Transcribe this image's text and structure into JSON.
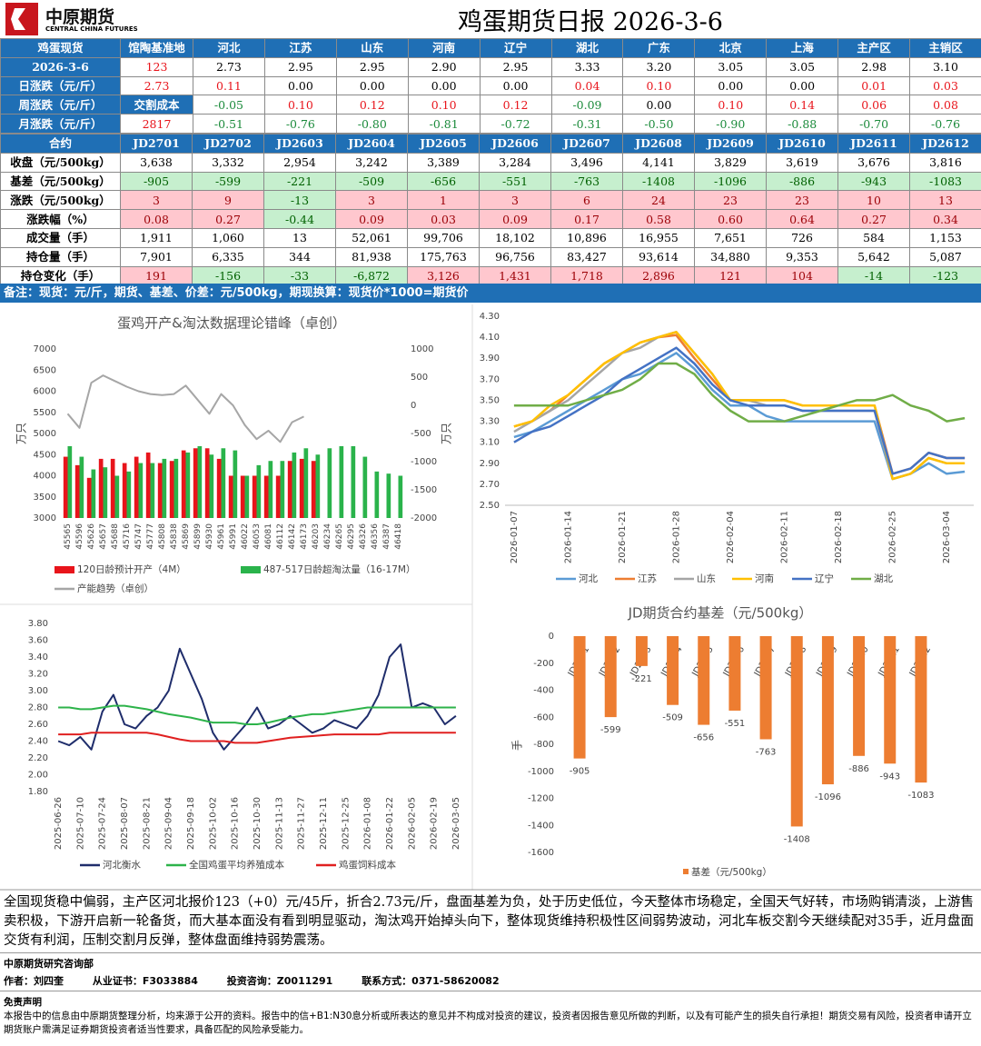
{
  "header": {
    "logo": "中原期货",
    "logo_en": "CENTRAL CHINA FUTURES",
    "title": "鸡蛋期货日报 2026-3-6"
  },
  "spot_table": {
    "header": [
      "鸡蛋现货",
      "馆陶基准地",
      "河北",
      "江苏",
      "山东",
      "河南",
      "辽宁",
      "湖北",
      "广东",
      "北京",
      "上海",
      "主产区",
      "主销区"
    ],
    "rows": [
      [
        "2026-3-6",
        "123",
        "2.73",
        "2.95",
        "2.95",
        "2.90",
        "2.95",
        "3.33",
        "3.20",
        "3.05",
        "3.05",
        "2.98",
        "3.10"
      ],
      [
        "日涨跌（元/斤）",
        "2.73",
        "0.11",
        "0.00",
        "0.00",
        "0.00",
        "0.00",
        "0.04",
        "0.10",
        "0.00",
        "0.00",
        "0.01",
        "0.03"
      ],
      [
        "周涨跌（元/斤）",
        "交割成本",
        "-0.05",
        "0.10",
        "0.12",
        "0.10",
        "0.12",
        "-0.09",
        "0.00",
        "0.10",
        "0.14",
        "0.06",
        "0.08"
      ],
      [
        "月涨跌（元/斤）",
        "2817",
        "-0.51",
        "-0.76",
        "-0.80",
        "-0.81",
        "-0.72",
        "-0.31",
        "-0.50",
        "-0.90",
        "-0.88",
        "-0.70",
        "-0.76"
      ]
    ]
  },
  "futures_table": {
    "header": [
      "合约",
      "JD2701",
      "JD2702",
      "JD2603",
      "JD2604",
      "JD2605",
      "JD2606",
      "JD2607",
      "JD2608",
      "JD2609",
      "JD2610",
      "JD2611",
      "JD2612"
    ],
    "rows": [
      [
        "收盘（元/500kg）",
        "3,638",
        "3,332",
        "2,954",
        "3,242",
        "3,389",
        "3,284",
        "3,496",
        "4,141",
        "3,829",
        "3,619",
        "3,676",
        "3,816"
      ],
      [
        "基差（元/500kg）",
        "-905",
        "-599",
        "-221",
        "-509",
        "-656",
        "-551",
        "-763",
        "-1408",
        "-1096",
        "-886",
        "-943",
        "-1083"
      ],
      [
        "涨跌（元/500kg）",
        "3",
        "9",
        "-13",
        "3",
        "1",
        "3",
        "6",
        "24",
        "23",
        "23",
        "10",
        "13"
      ],
      [
        "涨跌幅（%）",
        "0.08",
        "0.27",
        "-0.44",
        "0.09",
        "0.03",
        "0.09",
        "0.17",
        "0.58",
        "0.60",
        "0.64",
        "0.27",
        "0.34"
      ],
      [
        "成交量（手）",
        "1,911",
        "1,060",
        "13",
        "52,061",
        "99,706",
        "18,102",
        "10,896",
        "16,955",
        "7,651",
        "726",
        "584",
        "1,153"
      ],
      [
        "持仓量（手）",
        "7,901",
        "6,335",
        "344",
        "81,938",
        "175,763",
        "96,756",
        "83,427",
        "93,614",
        "34,880",
        "9,353",
        "5,642",
        "5,087"
      ],
      [
        "持仓变化（手）",
        "191",
        "-156",
        "-33",
        "-6,872",
        "3,126",
        "1,431",
        "1,718",
        "2,896",
        "121",
        "104",
        "-14",
        "-123"
      ]
    ]
  },
  "note": "备注：现货：元/斤，期货、基差、价差：元/500kg，期现换算：现货价*1000=期货价",
  "chart_data": [
    {
      "type": "bar",
      "title": "蛋鸡开产&淘汰数据理论错峰（卓创）",
      "ylabel": "万只",
      "y2label": "万只",
      "categories": [
        "45565",
        "45596",
        "45626",
        "45657",
        "45688",
        "45716",
        "45747",
        "45777",
        "45808",
        "45838",
        "45869",
        "45899",
        "45930",
        "45961",
        "45991",
        "46022",
        "46053",
        "46081",
        "46112",
        "46142",
        "46173",
        "46203",
        "46234",
        "46265",
        "46295",
        "46326",
        "46356",
        "46387",
        "46418"
      ],
      "series": [
        {
          "name": "120日龄预计开产（4M）",
          "type": "bar",
          "color": "#e8141b",
          "values": [
            4450,
            4250,
            3950,
            4400,
            4400,
            4300,
            4450,
            4550,
            4300,
            4350,
            4600,
            4650,
            4650,
            4400,
            4000,
            4000,
            4000,
            4000,
            4000,
            4350,
            4400,
            4350,
            null,
            null,
            null,
            null,
            null,
            null,
            null
          ]
        },
        {
          "name": "487-517日龄超淘汰量（16-17M）",
          "type": "bar",
          "color": "#2ab34b",
          "values": [
            4700,
            4450,
            4150,
            4200,
            4000,
            4100,
            4300,
            4300,
            4400,
            4400,
            4550,
            4700,
            4500,
            4650,
            4600,
            4000,
            4250,
            4350,
            4350,
            4550,
            4650,
            4500,
            4650,
            4700,
            4700,
            4450,
            4100,
            4050,
            4000
          ]
        },
        {
          "name": "产能趋势（卓创）",
          "type": "line",
          "axis": "y2",
          "color": "#a6a6a6",
          "values": [
            -150,
            -400,
            400,
            530,
            430,
            330,
            250,
            200,
            180,
            200,
            350,
            100,
            -150,
            200,
            0,
            -350,
            -600,
            -450,
            -650,
            -300,
            -200,
            null,
            null,
            null,
            null,
            null,
            null,
            null,
            null
          ]
        }
      ],
      "ylim": [
        3000,
        7000
      ],
      "yticks": [
        3000,
        3500,
        4000,
        4500,
        5000,
        5500,
        6000,
        6500,
        7000
      ],
      "y2lim": [
        -2000,
        1000
      ],
      "y2ticks": [
        -2000,
        -1500,
        -1000,
        -500,
        0,
        500,
        1000
      ]
    },
    {
      "type": "line",
      "x": [
        "2026-01-07",
        null,
        null,
        "2026-01-14",
        null,
        null,
        "2026-01-21",
        null,
        null,
        "2026-01-28",
        null,
        null,
        "2026-02-04",
        null,
        null,
        "2026-02-11",
        null,
        null,
        "2026-02-18",
        null,
        null,
        "2026-02-25",
        null,
        null,
        "2026-03-04",
        null
      ],
      "series": [
        {
          "name": "河北",
          "color": "#5b9bd5",
          "values": [
            3.15,
            3.2,
            3.3,
            3.4,
            3.5,
            3.6,
            3.7,
            3.75,
            3.85,
            3.95,
            3.8,
            3.6,
            3.45,
            3.45,
            3.35,
            3.3,
            3.3,
            3.3,
            3.3,
            3.3,
            3.3,
            2.75,
            2.8,
            2.9,
            2.8,
            2.82
          ]
        },
        {
          "name": "江苏",
          "color": "#ed7d31",
          "values": [
            3.25,
            3.3,
            3.4,
            3.55,
            3.7,
            3.85,
            3.95,
            4.05,
            4.1,
            4.12,
            3.9,
            3.7,
            3.5,
            3.5,
            3.5,
            3.5,
            3.45,
            3.45,
            3.45,
            3.45,
            3.45,
            2.8,
            2.85,
            3.0,
            2.95,
            2.95
          ]
        },
        {
          "name": "山东",
          "color": "#a5a5a5",
          "values": [
            3.2,
            3.3,
            3.4,
            3.5,
            3.65,
            3.8,
            3.95,
            4.0,
            4.1,
            4.15,
            3.95,
            3.75,
            3.5,
            3.5,
            3.45,
            3.45,
            3.4,
            3.4,
            3.4,
            3.4,
            3.4,
            2.75,
            2.8,
            2.95,
            2.9,
            2.9
          ]
        },
        {
          "name": "河南",
          "color": "#ffc000",
          "values": [
            3.25,
            3.3,
            3.45,
            3.55,
            3.7,
            3.85,
            3.95,
            4.05,
            4.1,
            4.15,
            3.95,
            3.75,
            3.5,
            3.5,
            3.5,
            3.5,
            3.45,
            3.45,
            3.45,
            3.45,
            3.45,
            2.75,
            2.8,
            2.95,
            2.9,
            2.9
          ]
        },
        {
          "name": "辽宁",
          "color": "#4472c4",
          "values": [
            3.1,
            3.2,
            3.25,
            3.35,
            3.45,
            3.55,
            3.7,
            3.8,
            3.9,
            4.0,
            3.85,
            3.65,
            3.5,
            3.45,
            3.45,
            3.45,
            3.4,
            3.4,
            3.4,
            3.4,
            3.4,
            2.8,
            2.85,
            3.0,
            2.95,
            2.95
          ]
        },
        {
          "name": "湖北",
          "color": "#70ad47",
          "values": [
            3.45,
            3.45,
            3.45,
            3.45,
            3.5,
            3.55,
            3.6,
            3.7,
            3.85,
            3.85,
            3.75,
            3.55,
            3.4,
            3.3,
            3.3,
            3.3,
            3.35,
            3.4,
            3.45,
            3.5,
            3.5,
            3.55,
            3.45,
            3.4,
            3.3,
            3.33
          ]
        }
      ],
      "ylim": [
        2.5,
        4.3
      ],
      "yticks": [
        {
          "value": 2.5,
          "label": "2.50"
        },
        {
          "value": 2.7,
          "label": "2.70"
        },
        {
          "value": 2.9,
          "label": "2.90"
        },
        {
          "value": 3.1,
          "label": "3.10"
        },
        {
          "value": 3.3,
          "label": "3.30"
        },
        {
          "value": 3.5,
          "label": "3.50"
        },
        {
          "value": 3.7,
          "label": "3.70"
        },
        {
          "value": 3.9,
          "label": "3.90"
        },
        {
          "value": 4.1,
          "label": "4.10"
        },
        {
          "value": 4.3,
          "label": "4.30"
        }
      ]
    },
    {
      "type": "line",
      "x": [
        "2025-06-26",
        null,
        "2025-07-10",
        null,
        "2025-07-24",
        null,
        "2025-08-07",
        null,
        "2025-08-21",
        null,
        "2025-09-04",
        null,
        "2025-09-18",
        null,
        "2025-10-02",
        null,
        "2025-10-16",
        null,
        "2025-10-30",
        null,
        "2025-11-13",
        null,
        "2025-11-27",
        null,
        "2025-12-11",
        null,
        "2025-12-25",
        null,
        "2026-01-08",
        null,
        "2026-01-22",
        null,
        "2026-02-05",
        null,
        "2026-02-19",
        null,
        "2026-03-05"
      ],
      "series": [
        {
          "name": "河北衡水",
          "color": "#1f2d6b",
          "values": [
            2.4,
            2.35,
            2.45,
            2.3,
            2.75,
            2.95,
            2.6,
            2.55,
            2.7,
            2.8,
            3.0,
            3.5,
            3.2,
            2.9,
            2.5,
            2.3,
            2.45,
            2.6,
            2.8,
            2.55,
            2.6,
            2.7,
            2.6,
            2.5,
            2.55,
            2.65,
            2.6,
            2.55,
            2.7,
            2.95,
            3.4,
            3.55,
            2.8,
            2.85,
            2.8,
            2.6,
            2.7
          ]
        },
        {
          "name": "全国鸡蛋平均养殖成本",
          "color": "#2db34a",
          "values": [
            2.8,
            2.8,
            2.78,
            2.78,
            2.8,
            2.82,
            2.82,
            2.8,
            2.78,
            2.75,
            2.72,
            2.7,
            2.68,
            2.65,
            2.62,
            2.62,
            2.62,
            2.6,
            2.6,
            2.62,
            2.65,
            2.68,
            2.7,
            2.72,
            2.72,
            2.74,
            2.76,
            2.78,
            2.8,
            2.8,
            2.8,
            2.8,
            2.8,
            2.8,
            2.8,
            2.8,
            2.8
          ]
        },
        {
          "name": "鸡蛋饲料成本",
          "color": "#e02020",
          "values": [
            2.48,
            2.48,
            2.48,
            2.5,
            2.5,
            2.5,
            2.5,
            2.5,
            2.5,
            2.48,
            2.45,
            2.42,
            2.4,
            2.4,
            2.4,
            2.4,
            2.38,
            2.38,
            2.38,
            2.4,
            2.42,
            2.44,
            2.45,
            2.46,
            2.47,
            2.48,
            2.48,
            2.48,
            2.48,
            2.48,
            2.5,
            2.5,
            2.5,
            2.5,
            2.5,
            2.5,
            2.5
          ]
        }
      ],
      "ylim": [
        1.8,
        3.8
      ],
      "yticks": [
        {
          "value": 1.8,
          "label": "1.80"
        },
        {
          "value": 2.0,
          "label": "2.00"
        },
        {
          "value": 2.2,
          "label": "2.20"
        },
        {
          "value": 2.4,
          "label": "2.40"
        },
        {
          "value": 2.6,
          "label": "2.60"
        },
        {
          "value": 2.8,
          "label": "2.80"
        },
        {
          "value": 3.0,
          "label": "3.00"
        },
        {
          "value": 3.2,
          "label": "3.20"
        },
        {
          "value": 3.4,
          "label": "3.40"
        },
        {
          "value": 3.6,
          "label": "3.60"
        },
        {
          "value": 3.8,
          "label": "3.80"
        }
      ]
    },
    {
      "type": "bar",
      "title": "JD期货合约基差（元/500kg）",
      "ylabel": "手",
      "data_labels": true,
      "categories": [
        "JD2701",
        "JD2702",
        "JD2603",
        "JD2604",
        "JD2605",
        "JD2606",
        "JD2607",
        "JD2608",
        "JD2609",
        "JD2610",
        "JD2611",
        "JD2612"
      ],
      "series": [
        {
          "name": "基差（元/500kg）",
          "type": "bar",
          "color": "#ed7d31",
          "values": [
            -905,
            -599,
            -221,
            -509,
            -656,
            -551,
            -763,
            -1408,
            -1096,
            -886,
            -943,
            -1083
          ]
        }
      ],
      "ylim": [
        -1600,
        0
      ],
      "yticks": [
        0,
        -200,
        -400,
        -600,
        -800,
        -1000,
        -1200,
        -1400,
        -1600
      ]
    }
  ],
  "summary": "全国现货稳中偏弱，主产区河北报价123（+0）元/45斤，折合2.73元/斤，盘面基差为负，处于历史低位，今天整体市场稳定，全国天气好转，市场购销清淡，上游售卖积极，下游开启新一轮备货，而大基本面没有看到明显驱动，淘汰鸡开始掉头向下，整体现货维持积极性区间弱势波动，河北车板交割今天继续配对35手，近月盘面交货有利润，压制交割月反弹，整体盘面维持弱势震荡。",
  "footer": {
    "dept": "中原期货研究咨询部",
    "author": "作者：刘四奎",
    "cert": "从业证书：F3033884",
    "advisory": "投资咨询：Z0011291",
    "contact": "联系方式：0371-58620082"
  },
  "disclaimer": {
    "title": "免责声明",
    "text": "本报告中的信息由中原期货整理分析，均来源于公开的资料。报告中的信+B1:N30息分析或所表达的意见并不构成对投资的建议，投资者因报告意见所做的判断，以及有可能产生的损失自行承担！期货交易有风险，投资者申请开立期货账户需满足证券期货投资者适当性要求，具备匹配的风险承受能力。"
  }
}
